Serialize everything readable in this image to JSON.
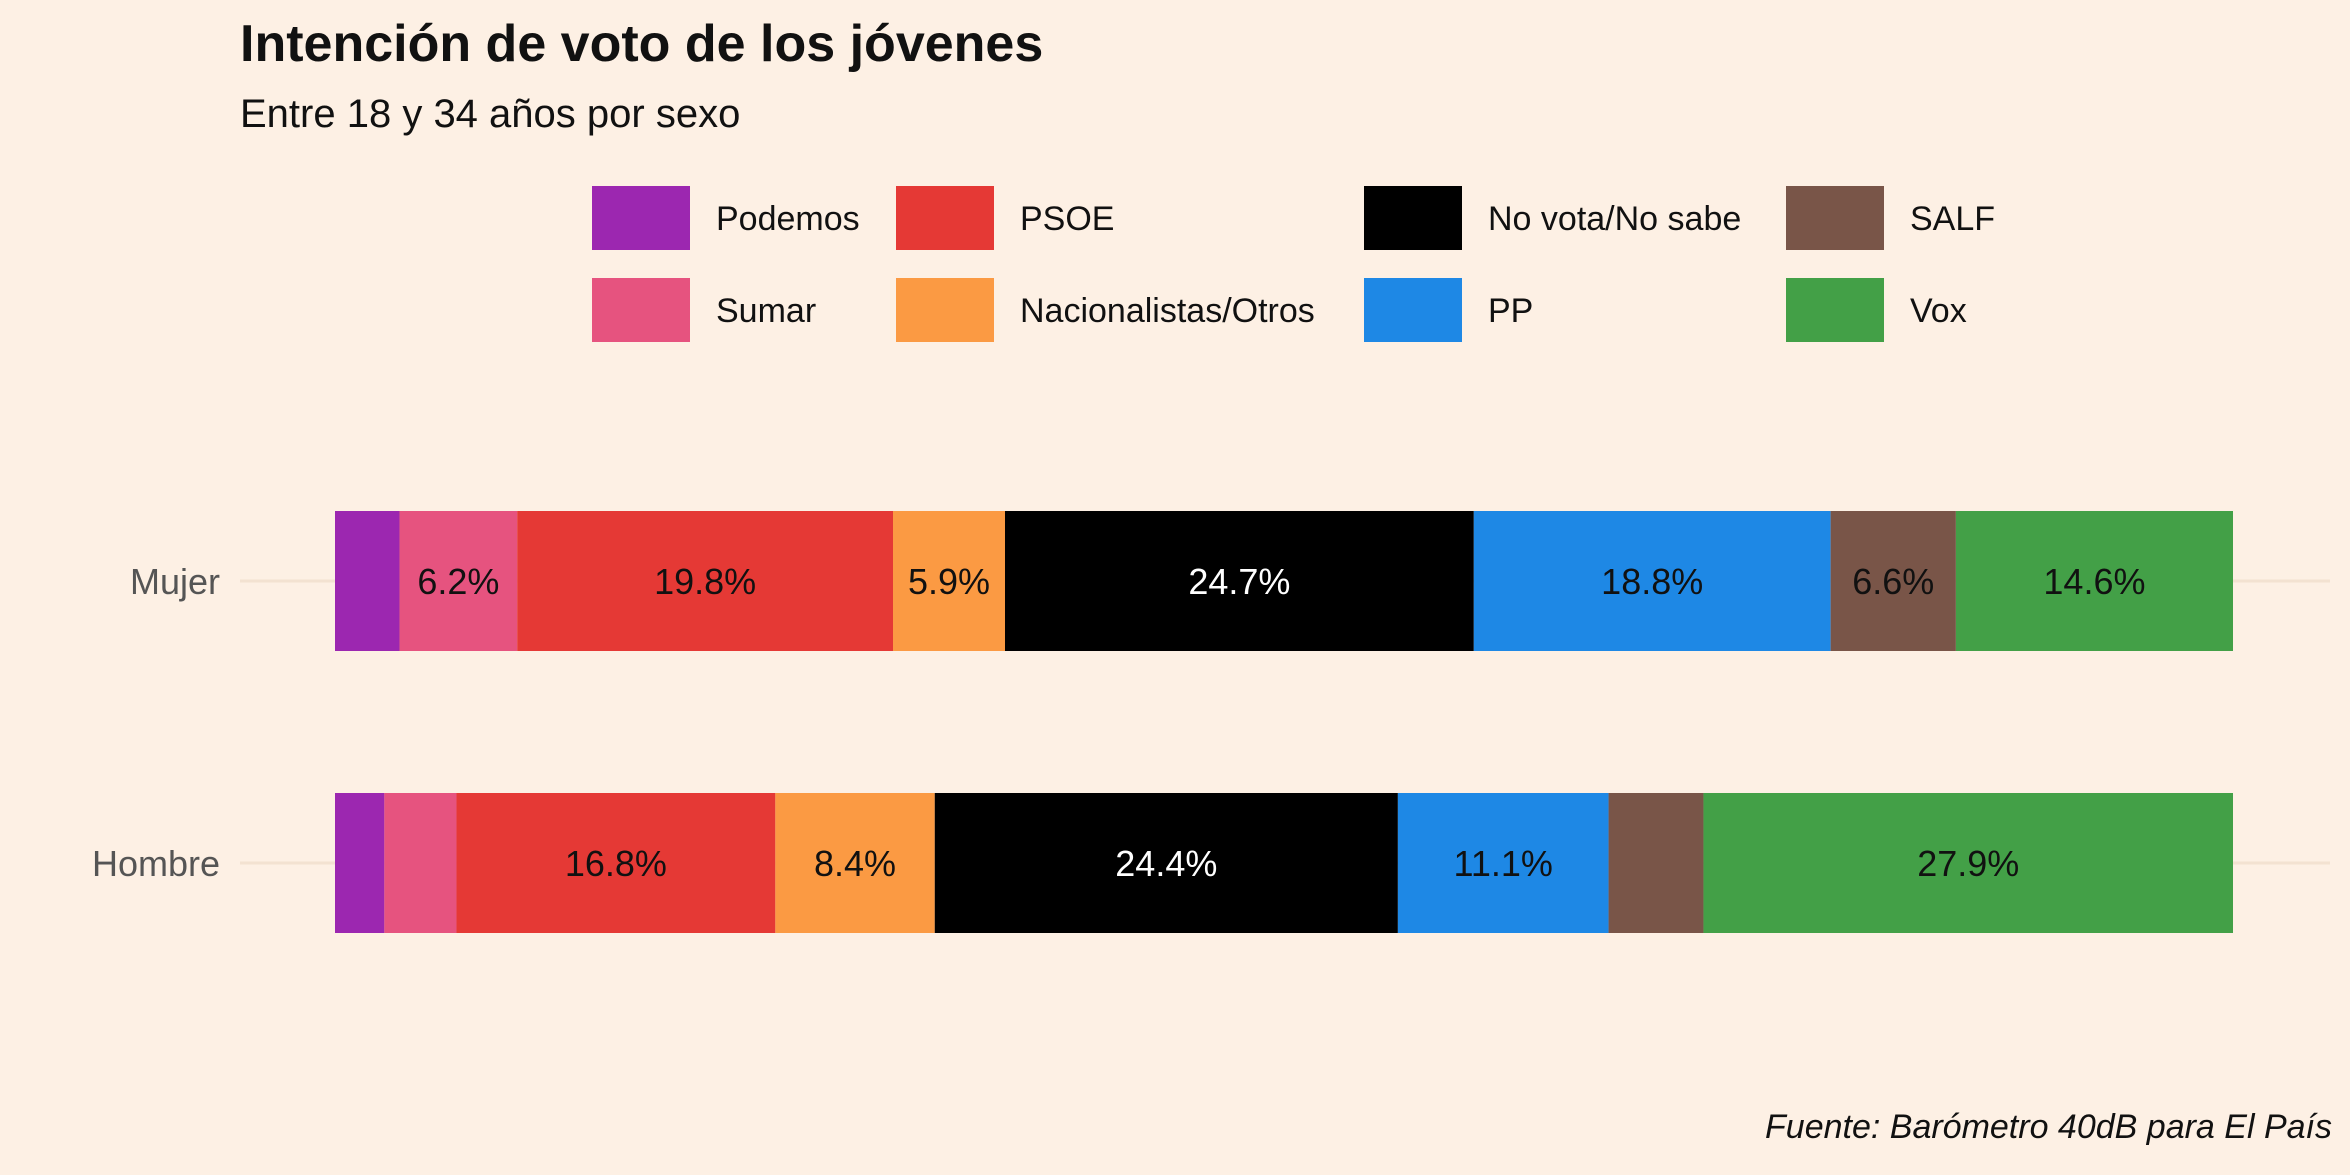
{
  "chart_data": {
    "type": "bar",
    "orientation": "horizontal",
    "stacked": true,
    "title": "Intención de voto de los jóvenes",
    "subtitle": "Entre 18 y 34 años por sexo",
    "caption": "Fuente: Barómetro 40dB para El País",
    "categories": [
      "Mujer",
      "Hombre"
    ],
    "xlim": [
      0,
      100
    ],
    "legend_position": "top",
    "grid": false,
    "series": [
      {
        "name": "Podemos",
        "color": "#9c27b0",
        "values": [
          3.4,
          2.6
        ],
        "labels": [
          "",
          ""
        ],
        "label_color": "#111111"
      },
      {
        "name": "Sumar",
        "color": "#e6537f",
        "values": [
          6.2,
          3.8
        ],
        "labels": [
          "6.2%",
          ""
        ],
        "label_color": "#111111"
      },
      {
        "name": "PSOE",
        "color": "#e53935",
        "values": [
          19.8,
          16.8
        ],
        "labels": [
          "19.8%",
          "16.8%"
        ],
        "label_color": "#111111"
      },
      {
        "name": "Nacionalistas/Otros",
        "color": "#fb9a43",
        "values": [
          5.9,
          8.4
        ],
        "labels": [
          "5.9%",
          "8.4%"
        ],
        "label_color": "#111111"
      },
      {
        "name": "No vota/No sabe",
        "color": "#000000",
        "values": [
          24.7,
          24.4
        ],
        "labels": [
          "24.7%",
          "24.4%"
        ],
        "label_color": "#ffffff"
      },
      {
        "name": "PP",
        "color": "#1e88e5",
        "values": [
          18.8,
          11.1
        ],
        "labels": [
          "18.8%",
          "11.1%"
        ],
        "label_color": "#111111"
      },
      {
        "name": "SALF",
        "color": "#795548",
        "values": [
          6.6,
          5.0
        ],
        "labels": [
          "6.6%",
          ""
        ],
        "label_color": "#111111"
      },
      {
        "name": "Vox",
        "color": "#43a047",
        "values": [
          14.6,
          27.9
        ],
        "labels": [
          "14.6%",
          "27.9%"
        ],
        "label_color": "#111111"
      }
    ]
  }
}
